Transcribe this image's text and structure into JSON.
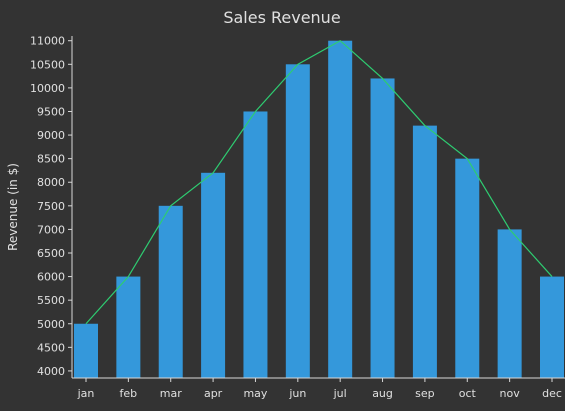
{
  "chart_data": {
    "type": "bar",
    "title": "Sales Revenue",
    "xlabel": "",
    "ylabel": "Revenue (in $)",
    "categories": [
      "jan",
      "feb",
      "mar",
      "apr",
      "may",
      "jun",
      "jul",
      "aug",
      "sep",
      "oct",
      "nov",
      "dec"
    ],
    "series": [
      {
        "type": "bar",
        "values": [
          5000,
          6000,
          7500,
          8200,
          9500,
          10500,
          11000,
          10200,
          9200,
          8500,
          7000,
          6000
        ]
      },
      {
        "type": "line",
        "values": [
          5000,
          6000,
          7500,
          8200,
          9500,
          10500,
          11000,
          10200,
          9200,
          8500,
          7000,
          6000
        ]
      }
    ],
    "y_ticks": [
      4000,
      4500,
      5000,
      5500,
      6000,
      6500,
      7000,
      7500,
      8000,
      8500,
      9000,
      9500,
      10000,
      10500,
      11000
    ],
    "ylim": [
      3850,
      11100
    ],
    "grid": false,
    "colors": {
      "background": "#333333",
      "bar": "#3498db",
      "line": "#2ecc71",
      "text": "#e0e0e0",
      "axis": "#d8d8d8"
    }
  }
}
